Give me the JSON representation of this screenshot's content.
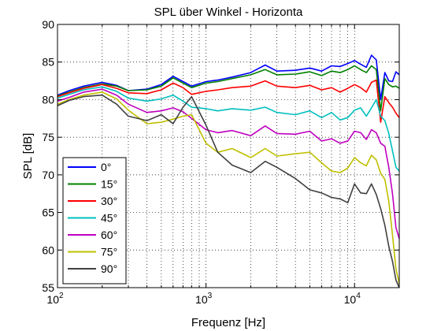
{
  "chart_data": {
    "type": "line",
    "title": "SPL über Winkel - Horizonta",
    "xlabel": "Frequenz [Hz]",
    "ylabel": "SPL [dB]",
    "x_scale": "log",
    "xlim": [
      100,
      20000
    ],
    "ylim": [
      55,
      90
    ],
    "x_ticks": [
      {
        "base": "10",
        "exp": "2"
      },
      {
        "base": "10",
        "exp": "3"
      },
      {
        "base": "10",
        "exp": "4"
      }
    ],
    "x_tick_values": [
      100,
      1000,
      10000
    ],
    "y_ticks": [
      "55",
      "60",
      "65",
      "70",
      "75",
      "80",
      "85",
      "90"
    ],
    "y_tick_values": [
      55,
      60,
      65,
      70,
      75,
      80,
      85,
      90
    ],
    "grid": true,
    "legend_position": "lower-left",
    "x": [
      100,
      120,
      150,
      200,
      250,
      300,
      400,
      500,
      600,
      700,
      800,
      1000,
      1200,
      1500,
      2000,
      2500,
      3000,
      4000,
      5000,
      6000,
      7000,
      8000,
      9000,
      10000,
      11000,
      12000,
      13000,
      14000,
      15000,
      16000,
      17000,
      18000,
      19000,
      20000
    ],
    "series": [
      {
        "name": "0°",
        "color": "#0000ff",
        "values": [
          80.6,
          81.2,
          81.8,
          82.3,
          81.9,
          81.2,
          81.4,
          82.0,
          83.1,
          82.4,
          81.8,
          82.4,
          82.6,
          83.0,
          83.6,
          84.6,
          83.8,
          83.9,
          84.2,
          83.8,
          84.5,
          84.4,
          84.8,
          85.2,
          84.7,
          84.3,
          85.9,
          85.3,
          80.0,
          83.6,
          82.5,
          82.4,
          83.7,
          83.3
        ]
      },
      {
        "name": "15°",
        "color": "#007f00",
        "values": [
          80.5,
          81.0,
          81.6,
          82.1,
          81.8,
          81.2,
          81.3,
          81.8,
          82.9,
          82.2,
          81.6,
          82.2,
          82.4,
          82.8,
          83.3,
          84.0,
          83.3,
          83.4,
          83.7,
          83.2,
          83.8,
          83.6,
          84.0,
          84.5,
          84.0,
          83.6,
          84.5,
          84.0,
          78.5,
          82.8,
          82.0,
          81.7,
          81.8,
          81.5
        ]
      },
      {
        "name": "30°",
        "color": "#ff0000",
        "values": [
          80.4,
          80.9,
          81.5,
          82.0,
          81.5,
          80.9,
          80.8,
          81.3,
          82.2,
          81.6,
          80.7,
          81.1,
          81.3,
          81.6,
          81.8,
          82.5,
          81.8,
          81.6,
          81.9,
          81.3,
          81.6,
          81.0,
          81.5,
          82.0,
          81.6,
          81.0,
          82.3,
          82.6,
          77.0,
          80.4,
          79.6,
          79.0,
          78.2,
          77.6
        ]
      },
      {
        "name": "45°",
        "color": "#00bfbf",
        "values": [
          80.2,
          80.7,
          81.3,
          81.7,
          81.1,
          80.2,
          79.8,
          80.1,
          80.6,
          79.8,
          79.0,
          78.8,
          78.5,
          78.8,
          78.6,
          79.0,
          78.3,
          78.0,
          78.5,
          77.6,
          78.3,
          77.3,
          77.6,
          78.6,
          78.9,
          77.8,
          78.9,
          80.0,
          77.8,
          77.2,
          75.5,
          73.2,
          71.0,
          70.5
        ]
      },
      {
        "name": "60°",
        "color": "#bf00bf",
        "values": [
          79.8,
          80.3,
          81.0,
          81.4,
          80.6,
          79.4,
          78.3,
          78.5,
          78.9,
          78.4,
          77.5,
          76.0,
          75.6,
          75.9,
          75.2,
          76.5,
          75.5,
          75.4,
          75.8,
          74.5,
          74.8,
          74.2,
          74.5,
          75.8,
          75.6,
          74.7,
          76.0,
          75.6,
          74.2,
          73.8,
          71.0,
          67.5,
          63.0,
          61.5
        ]
      },
      {
        "name": "75°",
        "color": "#bfbf00",
        "values": [
          79.4,
          80.0,
          80.6,
          81.0,
          80.1,
          78.6,
          76.8,
          77.0,
          77.4,
          77.8,
          78.0,
          74.2,
          73.0,
          73.5,
          72.3,
          73.5,
          72.5,
          72.8,
          73.0,
          71.6,
          70.5,
          70.3,
          70.9,
          72.3,
          71.6,
          71.2,
          72.6,
          72.0,
          70.2,
          69.4,
          66.5,
          62.0,
          57.5,
          55.5
        ]
      },
      {
        "name": "90°",
        "color": "#404040",
        "values": [
          79.2,
          79.9,
          80.4,
          80.6,
          79.4,
          77.8,
          77.2,
          78.0,
          76.8,
          79.0,
          80.4,
          76.6,
          73.0,
          71.3,
          70.3,
          71.8,
          71.0,
          69.5,
          68.0,
          67.6,
          67.0,
          66.8,
          66.3,
          68.8,
          67.6,
          67.5,
          68.8,
          67.4,
          65.5,
          63.3,
          60.5,
          58.5,
          56.0,
          55.0
        ]
      }
    ]
  }
}
